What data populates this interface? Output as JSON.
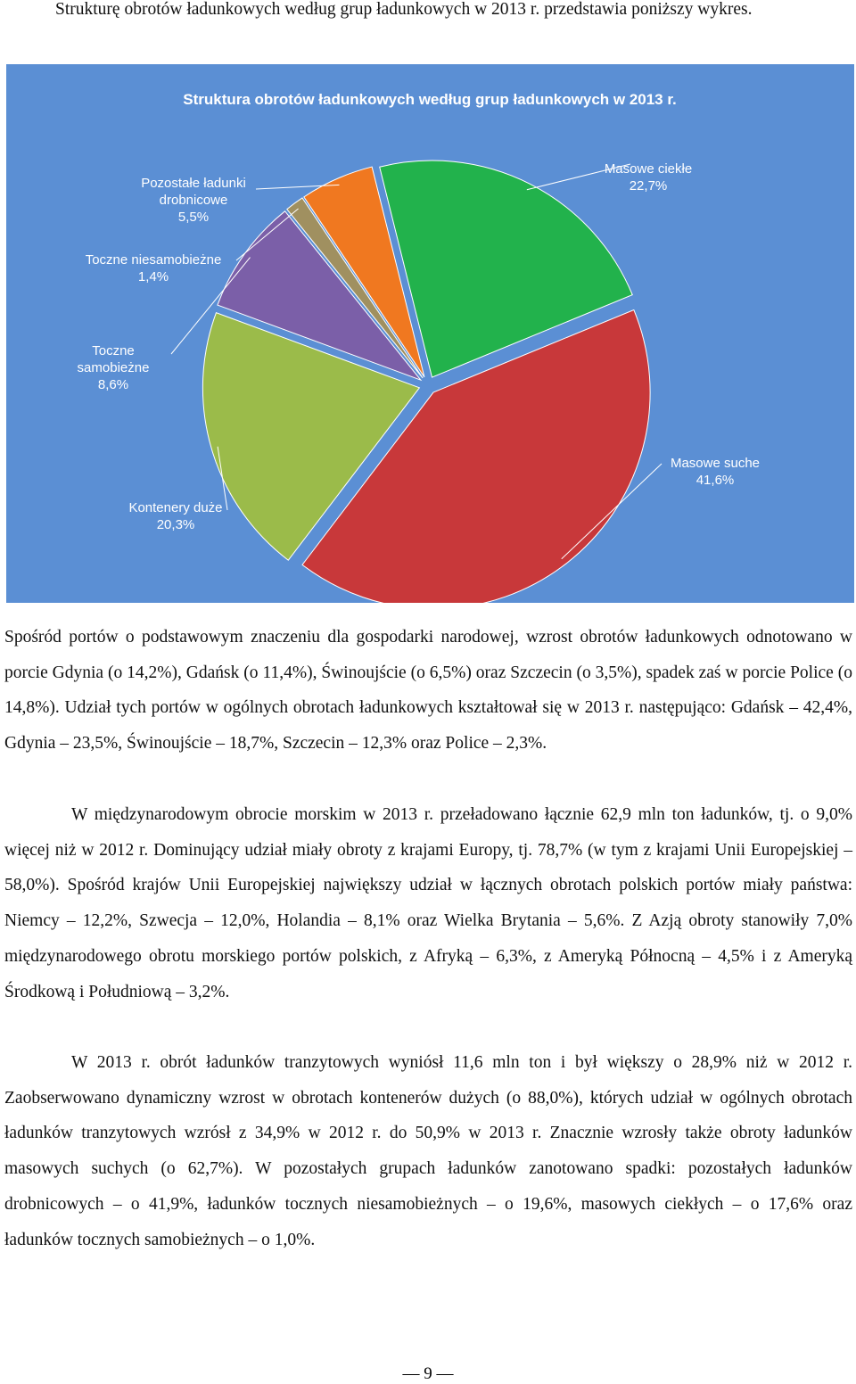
{
  "intro": "Strukturę obrotów ładunkowych według grup ładunkowych w 2013 r. przedstawia poniższy wykres.",
  "chart_data": {
    "type": "pie",
    "title": "Struktura obrotów ładunkowych według grup ładunkowych w 2013 r.",
    "categories": [
      "Masowe ciekłe",
      "Masowe suche",
      "Kontenery duże",
      "Toczne samobieżne",
      "Toczne niesamobieżne",
      "Pozostałe ładunki drobnicowe"
    ],
    "values": [
      22.7,
      41.6,
      20.3,
      8.6,
      1.4,
      5.5
    ],
    "value_labels": [
      "22,7%",
      "41,6%",
      "20,3%",
      "8,6%",
      "1,4%",
      "5,5%"
    ],
    "colors": [
      "#22b24c",
      "#c8383a",
      "#9bbb4a",
      "#7b5fa8",
      "#a09060",
      "#f07820"
    ]
  },
  "paragraphs": [
    "Spośród portów o podstawowym znaczeniu dla gospodarki narodowej, wzrost obrotów ładunkowych odnotowano w porcie Gdynia (o 14,2%), Gdańsk (o 11,4%), Świnoujście (o 6,5%) oraz Szczecin (o 3,5%), spadek zaś w porcie Police (o 14,8%). Udział tych portów w ogólnych obrotach ładunkowych kształtował się w 2013 r. następująco: Gdańsk – 42,4%, Gdynia – 23,5%, Świnoujście – 18,7%, Szczecin – 12,3% oraz Police – 2,3%.",
    "W międzynarodowym obrocie morskim w 2013 r. przeładowano łącznie 62,9 mln ton ładunków, tj. o 9,0% więcej niż w 2012 r. Dominujący udział miały obroty z krajami Europy, tj. 78,7% (w tym z krajami Unii Europejskiej – 58,0%). Spośród krajów Unii Europejskiej największy udział w łącznych obrotach polskich portów miały państwa: Niemcy – 12,2%, Szwecja – 12,0%, Holandia – 8,1% oraz Wielka Brytania – 5,6%. Z Azją obroty stanowiły 7,0% międzynarodowego obrotu morskiego portów polskich, z Afryką – 6,3%, z Ameryką Północną – 4,5% i z Ameryką Środkową i Południową – 3,2%.",
    "W 2013 r. obrót ładunków tranzytowych wyniósł 11,6 mln ton i był większy o 28,9% niż w 2012 r. Zaobserwowano dynamiczny wzrost w obrotach kontenerów dużych (o 88,0%), których udział w ogólnych obrotach ładunków tranzytowych wzrósł z 34,9% w 2012 r. do 50,9% w 2013 r. Znacznie wzrosły także obroty ładunków masowych suchych (o 62,7%). W pozostałych grupach ładunków zanotowano spadki: pozostałych ładunków drobnicowych – o 41,9%, ładunków tocznych niesamobieżnych – o 19,6%, masowych ciekłych – o 17,6% oraz ładunków tocznych samobieżnych – o 1,0%."
  ],
  "page_number": "— 9 —"
}
